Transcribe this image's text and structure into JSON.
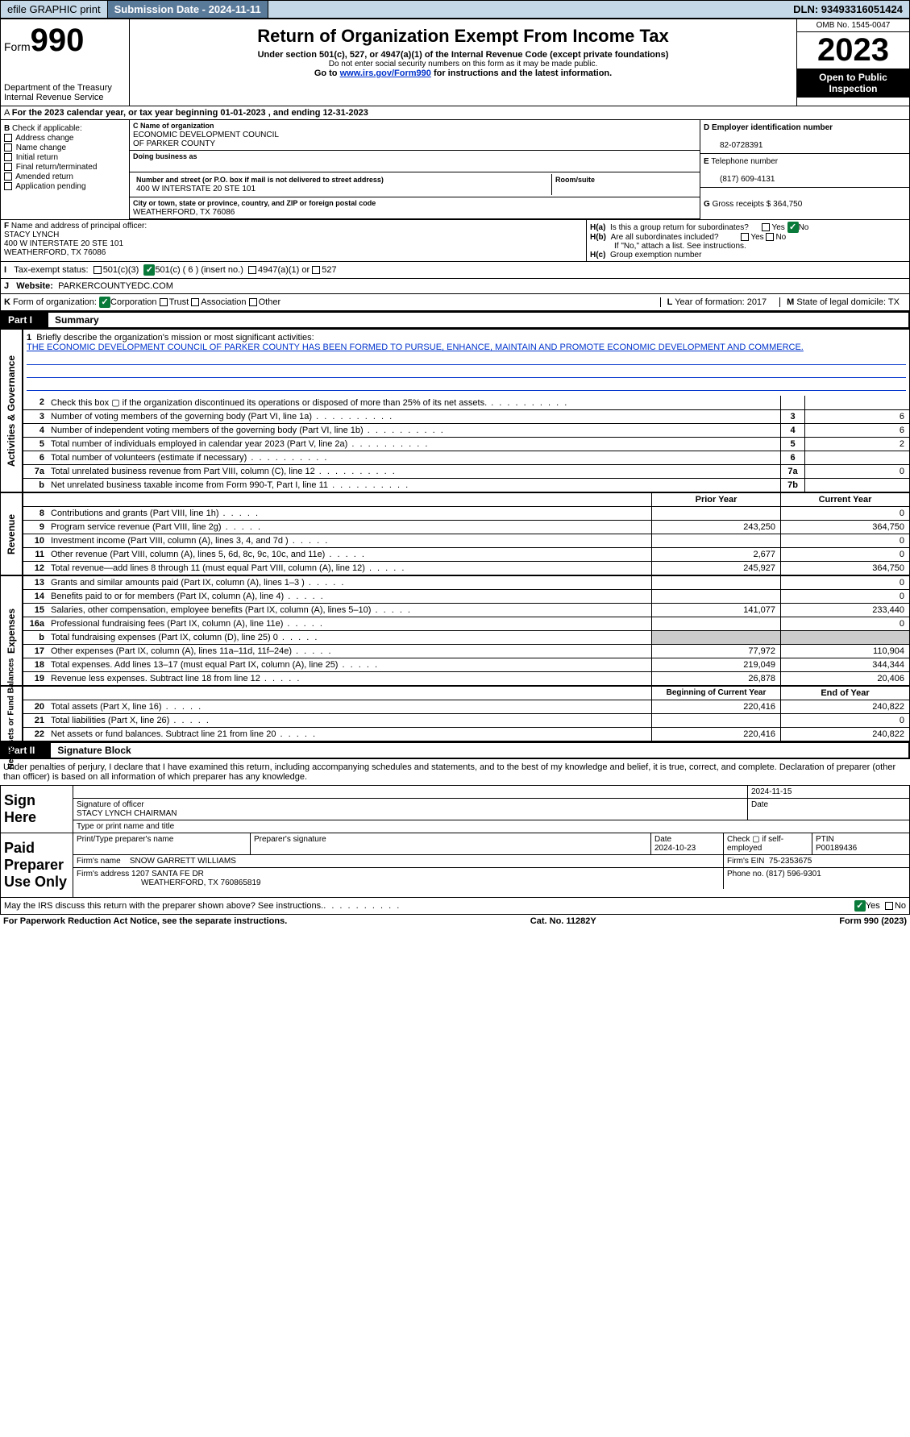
{
  "topbar": {
    "efile": "efile GRAPHIC print",
    "sub_label": "Submission Date - 2024-11-11",
    "dln_label": "DLN: 93493316051424"
  },
  "header": {
    "form_word": "Form",
    "form_num": "990",
    "dept": "Department of the Treasury",
    "irs": "Internal Revenue Service",
    "title": "Return of Organization Exempt From Income Tax",
    "sub1": "Under section 501(c), 527, or 4947(a)(1) of the Internal Revenue Code (except private foundations)",
    "sub2": "Do not enter social security numbers on this form as it may be made public.",
    "sub3_pre": "Go to ",
    "sub3_link": "www.irs.gov/Form990",
    "sub3_post": " for instructions and the latest information.",
    "omb": "OMB No. 1545-0047",
    "year": "2023",
    "inspect": "Open to Public Inspection"
  },
  "line_a": "For the 2023 calendar year, or tax year beginning 01-01-2023    , and ending 12-31-2023",
  "box_b": {
    "intro": "Check if applicable:",
    "items": [
      "Address change",
      "Name change",
      "Initial return",
      "Final return/terminated",
      "Amended return",
      "Application pending"
    ],
    "letter": "B"
  },
  "box_c": {
    "name_label": "Name of organization",
    "name1": "ECONOMIC DEVELOPMENT COUNCIL",
    "name2": "OF PARKER COUNTY",
    "dba_label": "Doing business as",
    "addr_label": "Number and street (or P.O. box if mail is not delivered to street address)",
    "addr": "400 W INTERSTATE 20 STE 101",
    "room_label": "Room/suite",
    "city_label": "City or town, state or province, country, and ZIP or foreign postal code",
    "city": "WEATHERFORD, TX  76086",
    "letter": "C"
  },
  "box_d": {
    "ein_label": "Employer identification number",
    "ein": "82-0728391",
    "tel_label": "Telephone number",
    "tel": "(817) 609-4131",
    "gross_label": "Gross receipts $",
    "gross": "364,750",
    "letters": {
      "d": "D",
      "e": "E",
      "g": "G"
    }
  },
  "box_f": {
    "label": "Name and address of principal officer:",
    "name": "STACY LYNCH",
    "addr1": "400 W INTERSTATE 20 STE 101",
    "addr2": "WEATHERFORD, TX  76086",
    "letter": "F"
  },
  "box_h": {
    "a": "Is this a group return for subordinates?",
    "b": "Are all subordinates included?",
    "b_note": "If \"No,\" attach a list. See instructions.",
    "c": "Group exemption number",
    "yes": "Yes",
    "no": "No",
    "ha": "H(a)",
    "hb": "H(b)",
    "hc": "H(c)"
  },
  "row_i": {
    "letter": "I",
    "label": "Tax-exempt status:",
    "o1": "501(c)(3)",
    "o2": "501(c) ( 6 ) (insert no.)",
    "o3": "4947(a)(1) or",
    "o4": "527"
  },
  "row_j": {
    "letter": "J",
    "label": "Website:",
    "val": "PARKERCOUNTYEDC.COM"
  },
  "row_k": {
    "letter": "K",
    "label": "Form of organization:",
    "opts": [
      "Corporation",
      "Trust",
      "Association",
      "Other"
    ],
    "l_label": "Year of formation: 2017",
    "m_label": "State of legal domicile: TX",
    "l": "L",
    "m": "M"
  },
  "part1": {
    "num": "Part I",
    "title": "Summary"
  },
  "mission": {
    "num": "1",
    "label": "Briefly describe the organization's mission or most significant activities:",
    "text": "THE ECONOMIC DEVELOPMENT COUNCIL OF PARKER COUNTY HAS BEEN FORMED TO PURSUE, ENHANCE, MAINTAIN AND PROMOTE ECONOMIC DEVELOPMENT AND COMMERCE."
  },
  "gov_rows": [
    {
      "n": "2",
      "d": "Check this box ▢ if the organization discontinued its operations or disposed of more than 25% of its net assets.",
      "box": "",
      "v": ""
    },
    {
      "n": "3",
      "d": "Number of voting members of the governing body (Part VI, line 1a)",
      "box": "3",
      "v": "6"
    },
    {
      "n": "4",
      "d": "Number of independent voting members of the governing body (Part VI, line 1b)",
      "box": "4",
      "v": "6"
    },
    {
      "n": "5",
      "d": "Total number of individuals employed in calendar year 2023 (Part V, line 2a)",
      "box": "5",
      "v": "2"
    },
    {
      "n": "6",
      "d": "Total number of volunteers (estimate if necessary)",
      "box": "6",
      "v": ""
    },
    {
      "n": "7a",
      "d": "Total unrelated business revenue from Part VIII, column (C), line 12",
      "box": "7a",
      "v": "0"
    },
    {
      "n": "b",
      "d": "Net unrelated business taxable income from Form 990-T, Part I, line 11",
      "box": "7b",
      "v": ""
    }
  ],
  "col_hdr": {
    "py": "Prior Year",
    "cy": "Current Year"
  },
  "rev_rows": [
    {
      "n": "8",
      "d": "Contributions and grants (Part VIII, line 1h)",
      "py": "",
      "cy": "0"
    },
    {
      "n": "9",
      "d": "Program service revenue (Part VIII, line 2g)",
      "py": "243,250",
      "cy": "364,750"
    },
    {
      "n": "10",
      "d": "Investment income (Part VIII, column (A), lines 3, 4, and 7d )",
      "py": "",
      "cy": "0"
    },
    {
      "n": "11",
      "d": "Other revenue (Part VIII, column (A), lines 5, 6d, 8c, 9c, 10c, and 11e)",
      "py": "2,677",
      "cy": "0"
    },
    {
      "n": "12",
      "d": "Total revenue—add lines 8 through 11 (must equal Part VIII, column (A), line 12)",
      "py": "245,927",
      "cy": "364,750"
    }
  ],
  "exp_rows": [
    {
      "n": "13",
      "d": "Grants and similar amounts paid (Part IX, column (A), lines 1–3 )",
      "py": "",
      "cy": "0"
    },
    {
      "n": "14",
      "d": "Benefits paid to or for members (Part IX, column (A), line 4)",
      "py": "",
      "cy": "0"
    },
    {
      "n": "15",
      "d": "Salaries, other compensation, employee benefits (Part IX, column (A), lines 5–10)",
      "py": "141,077",
      "cy": "233,440"
    },
    {
      "n": "16a",
      "d": "Professional fundraising fees (Part IX, column (A), line 11e)",
      "py": "",
      "cy": "0"
    },
    {
      "n": "b",
      "d": "Total fundraising expenses (Part IX, column (D), line 25) 0",
      "py": "grey",
      "cy": "grey"
    },
    {
      "n": "17",
      "d": "Other expenses (Part IX, column (A), lines 11a–11d, 11f–24e)",
      "py": "77,972",
      "cy": "110,904"
    },
    {
      "n": "18",
      "d": "Total expenses. Add lines 13–17 (must equal Part IX, column (A), line 25)",
      "py": "219,049",
      "cy": "344,344"
    },
    {
      "n": "19",
      "d": "Revenue less expenses. Subtract line 18 from line 12",
      "py": "26,878",
      "cy": "20,406"
    }
  ],
  "na_hdr": {
    "py": "Beginning of Current Year",
    "cy": "End of Year"
  },
  "na_rows": [
    {
      "n": "20",
      "d": "Total assets (Part X, line 16)",
      "py": "220,416",
      "cy": "240,822"
    },
    {
      "n": "21",
      "d": "Total liabilities (Part X, line 26)",
      "py": "",
      "cy": "0"
    },
    {
      "n": "22",
      "d": "Net assets or fund balances. Subtract line 21 from line 20",
      "py": "220,416",
      "cy": "240,822"
    }
  ],
  "side": {
    "gov": "Activities & Governance",
    "rev": "Revenue",
    "exp": "Expenses",
    "na": "Net Assets or Fund Balances"
  },
  "part2": {
    "num": "Part II",
    "title": "Signature Block"
  },
  "sig": {
    "decl": "Under penalties of perjury, I declare that I have examined this return, including accompanying schedules and statements, and to the best of my knowledge and belief, it is true, correct, and complete. Declaration of preparer (other than officer) is based on all information of which preparer has any knowledge.",
    "sign_here": "Sign Here",
    "sig_officer": "Signature of officer",
    "officer_name": "STACY LYNCH  CHAIRMAN",
    "type_name": "Type or print name and title",
    "date1": "2024-11-15",
    "date_l": "Date",
    "paid": "Paid Preparer Use Only",
    "print_label": "Print/Type preparer's name",
    "prep_sig": "Preparer's signature",
    "date2": "2024-10-23",
    "check_self": "Check ▢ if self-employed",
    "ptin_l": "PTIN",
    "ptin": "P00189436",
    "firm_name_l": "Firm's name",
    "firm_name": "SNOW GARRETT WILLIAMS",
    "firm_ein_l": "Firm's EIN",
    "firm_ein": "75-2353675",
    "firm_addr_l": "Firm's address",
    "firm_addr1": "1207 SANTA FE DR",
    "firm_addr2": "WEATHERFORD, TX  760865819",
    "phone_l": "Phone no.",
    "phone": "(817) 596-9301",
    "discuss": "May the IRS discuss this return with the preparer shown above? See instructions.",
    "yes": "Yes",
    "no": "No"
  },
  "footer": {
    "left": "For Paperwork Reduction Act Notice, see the separate instructions.",
    "mid": "Cat. No. 11282Y",
    "right": "Form 990 (2023)"
  }
}
